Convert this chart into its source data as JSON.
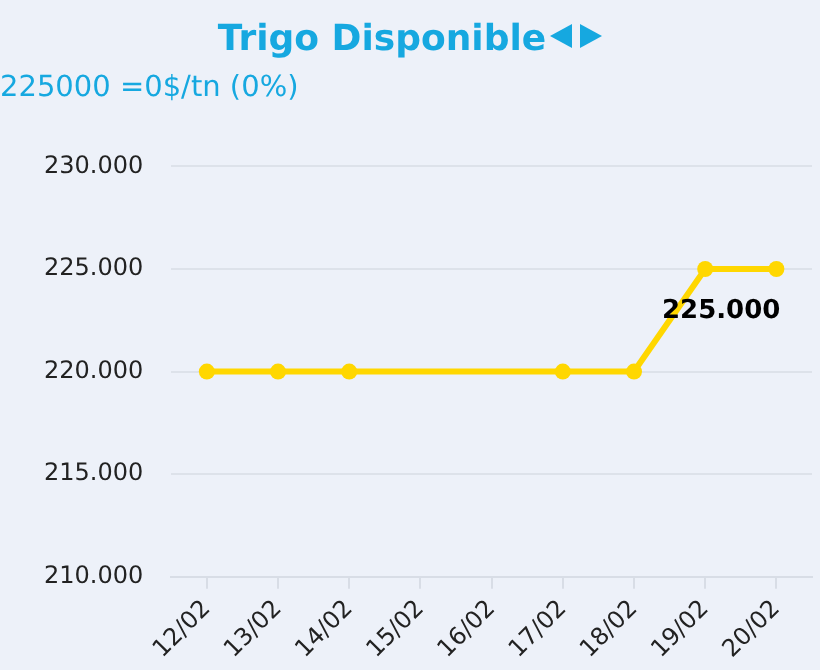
{
  "chart_data": {
    "type": "line",
    "title": "Trigo Disponible",
    "subtitle": "225000 =0$/tn (0%)",
    "categories": [
      "12/02",
      "13/02",
      "14/02",
      "15/02",
      "16/02",
      "17/02",
      "18/02",
      "19/02",
      "20/02"
    ],
    "series": [
      {
        "color": "#ffd700",
        "values": [
          220000,
          220000,
          220000,
          null,
          null,
          220000,
          220000,
          225000,
          225000
        ]
      }
    ],
    "ylim": [
      210000,
      230000
    ],
    "yticks": [
      {
        "value": 210000,
        "label": "210.000"
      },
      {
        "value": 215000,
        "label": "215.000"
      },
      {
        "value": 220000,
        "label": "220.000"
      },
      {
        "value": 225000,
        "label": "225.000"
      },
      {
        "value": 230000,
        "label": "230.000"
      }
    ],
    "grid": "y",
    "legend": false,
    "marker": "circle",
    "line_style": "solid",
    "annotations": [
      {
        "text": "225.000",
        "x": "20/02",
        "y": 225000
      }
    ]
  }
}
